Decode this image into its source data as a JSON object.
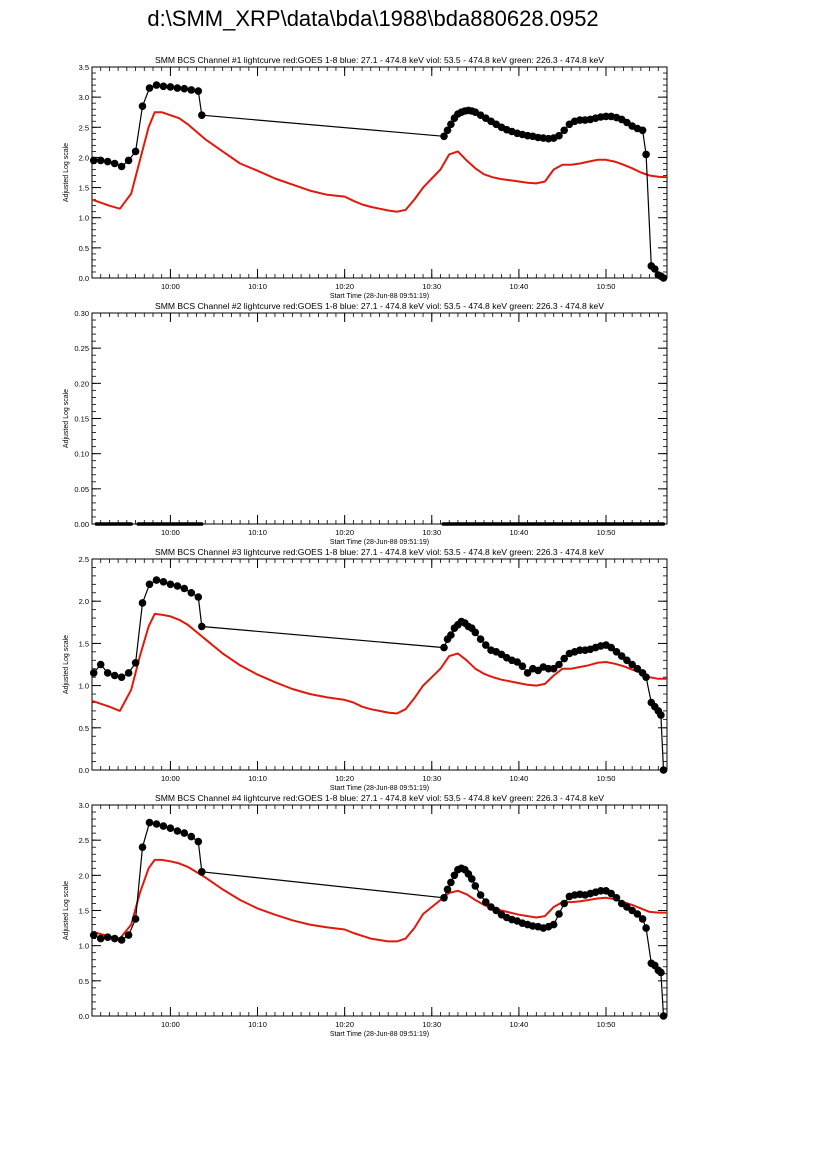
{
  "page": {
    "title": "d:\\SMM_XRP\\data\\bda\\1988\\bda880628.0952"
  },
  "colors": {
    "goes_red": "#e0190c",
    "bcs_black": "#000000",
    "frame": "#000000"
  },
  "chart_data": [
    {
      "type": "line",
      "title": "SMM BCS Channel #1 lightcurve  red:GOES 1-8  blue: 27.1 - 474.8 keV  viol: 53.5 - 474.8 keV  green: 226.3 - 474.8 keV",
      "xlabel": "Start Time (28-Jun-88 09:51:19)",
      "ylabel": "Adjusted Log scale",
      "xlim": [
        0,
        66
      ],
      "ylim": [
        0,
        3.5
      ],
      "xticks": [
        {
          "x": 9,
          "label": "10:00"
        },
        {
          "x": 19,
          "label": "10:10"
        },
        {
          "x": 29,
          "label": "10:20"
        },
        {
          "x": 39,
          "label": "10:30"
        },
        {
          "x": 49,
          "label": "10:40"
        },
        {
          "x": 59,
          "label": "10:50"
        }
      ],
      "yticks": [
        {
          "v": 0,
          "label": "0.0"
        },
        {
          "v": 0.5,
          "label": "0.5"
        },
        {
          "v": 1.0,
          "label": "1.0"
        },
        {
          "v": 1.5,
          "label": "1.5"
        },
        {
          "v": 2.0,
          "label": "2.0"
        },
        {
          "v": 2.5,
          "label": "2.5"
        },
        {
          "v": 3.0,
          "label": "3.0"
        },
        {
          "v": 3.5,
          "label": "3.5"
        }
      ],
      "series": [
        {
          "color": "red",
          "x": [
            0,
            2,
            3.2,
            4.5,
            5.5,
            6.5,
            7.2,
            8,
            9,
            10,
            11,
            13,
            15,
            17,
            19,
            21,
            23,
            25,
            27,
            29,
            30,
            31,
            32,
            33,
            34,
            35,
            36,
            37,
            38,
            39,
            40,
            41,
            42,
            43,
            44,
            45,
            46,
            47,
            48,
            49,
            50,
            51,
            52,
            53,
            54,
            55,
            56,
            57,
            58,
            59,
            60,
            61,
            62,
            63,
            64,
            65,
            66
          ],
          "y": [
            1.3,
            1.2,
            1.15,
            1.4,
            1.95,
            2.5,
            2.75,
            2.75,
            2.7,
            2.65,
            2.55,
            2.3,
            2.1,
            1.9,
            1.78,
            1.65,
            1.55,
            1.45,
            1.38,
            1.35,
            1.28,
            1.22,
            1.18,
            1.15,
            1.12,
            1.1,
            1.13,
            1.3,
            1.5,
            1.65,
            1.8,
            2.05,
            2.1,
            1.95,
            1.82,
            1.72,
            1.67,
            1.64,
            1.62,
            1.6,
            1.58,
            1.57,
            1.6,
            1.8,
            1.88,
            1.88,
            1.9,
            1.93,
            1.96,
            1.96,
            1.93,
            1.88,
            1.82,
            1.75,
            1.7,
            1.68,
            1.67
          ]
        },
        {
          "color": "black",
          "x": [
            0.2,
            1,
            1.8,
            2.6,
            3.4,
            4.2,
            5,
            5.8,
            6.6,
            7.4,
            8.2,
            9,
            9.8,
            10.6,
            11.4,
            12.2,
            12.6,
            40.4,
            40.8,
            41.2,
            41.6,
            42,
            42.4,
            42.8,
            43.2,
            43.6,
            44,
            44.6,
            45.2,
            45.8,
            46.4,
            47,
            47.6,
            48.2,
            48.8,
            49.4,
            50,
            50.6,
            51.2,
            51.8,
            52.4,
            53,
            53.6,
            54.2,
            54.8,
            55.4,
            56,
            56.6,
            57.2,
            57.8,
            58.4,
            59,
            59.6,
            60.2,
            60.8,
            61.4,
            62,
            62.6,
            63.2,
            63.6,
            64.2,
            64.6,
            65,
            65.3,
            65.6
          ],
          "y": [
            1.95,
            1.95,
            1.93,
            1.9,
            1.85,
            1.95,
            2.1,
            2.85,
            3.15,
            3.2,
            3.18,
            3.17,
            3.15,
            3.14,
            3.12,
            3.1,
            2.7,
            2.35,
            2.45,
            2.55,
            2.65,
            2.72,
            2.75,
            2.77,
            2.78,
            2.77,
            2.75,
            2.7,
            2.65,
            2.6,
            2.55,
            2.5,
            2.46,
            2.43,
            2.4,
            2.38,
            2.36,
            2.35,
            2.33,
            2.32,
            2.31,
            2.32,
            2.36,
            2.45,
            2.55,
            2.6,
            2.62,
            2.62,
            2.63,
            2.65,
            2.67,
            2.68,
            2.68,
            2.66,
            2.63,
            2.58,
            2.52,
            2.48,
            2.45,
            2.05,
            0.2,
            0.15,
            0.05,
            0.03,
            0.0
          ]
        }
      ]
    },
    {
      "type": "line",
      "title": "SMM BCS Channel #2 lightcurve  red:GOES 1-8  blue: 27.1 - 474.8 keV  viol: 53.5 - 474.8 keV  green: 226.3 - 474.8 keV",
      "xlabel": "Start Time (28-Jun-88 09:51:19)",
      "ylabel": "Adjusted Log scale",
      "xlim": [
        0,
        66
      ],
      "ylim": [
        0,
        0.3
      ],
      "xticks": [
        {
          "x": 9,
          "label": "10:00"
        },
        {
          "x": 19,
          "label": "10:10"
        },
        {
          "x": 29,
          "label": "10:20"
        },
        {
          "x": 39,
          "label": "10:30"
        },
        {
          "x": 49,
          "label": "10:40"
        },
        {
          "x": 59,
          "label": "10:50"
        }
      ],
      "yticks": [
        {
          "v": 0,
          "label": "0.00"
        },
        {
          "v": 0.05,
          "label": "0.05"
        },
        {
          "v": 0.1,
          "label": "0.10"
        },
        {
          "v": 0.15,
          "label": "0.15"
        },
        {
          "v": 0.2,
          "label": "0.20"
        },
        {
          "v": 0.25,
          "label": "0.25"
        },
        {
          "v": 0.3,
          "label": "0.30"
        }
      ],
      "series": [
        {
          "color": "black",
          "segments": [
            [
              0.5,
              4.5
            ],
            [
              5.3,
              12.6
            ],
            [
              40.3,
              65.6
            ]
          ],
          "y": 0.0
        }
      ]
    },
    {
      "type": "line",
      "title": "SMM BCS Channel #3 lightcurve  red:GOES 1-8  blue: 27.1 - 474.8 keV  viol: 53.5 - 474.8 keV  green: 226.3 - 474.8 keV",
      "xlabel": "Start Time (28-Jun-88 09:51:19)",
      "ylabel": "Adjusted Log scale",
      "xlim": [
        0,
        66
      ],
      "ylim": [
        0,
        2.5
      ],
      "xticks": [
        {
          "x": 9,
          "label": "10:00"
        },
        {
          "x": 19,
          "label": "10:10"
        },
        {
          "x": 29,
          "label": "10:20"
        },
        {
          "x": 39,
          "label": "10:30"
        },
        {
          "x": 49,
          "label": "10:40"
        },
        {
          "x": 59,
          "label": "10:50"
        }
      ],
      "yticks": [
        {
          "v": 0,
          "label": "0.0"
        },
        {
          "v": 0.5,
          "label": "0.5"
        },
        {
          "v": 1.0,
          "label": "1.0"
        },
        {
          "v": 1.5,
          "label": "1.5"
        },
        {
          "v": 2.0,
          "label": "2.0"
        },
        {
          "v": 2.5,
          "label": "2.5"
        }
      ],
      "series": [
        {
          "color": "red",
          "x": [
            0,
            2,
            3.2,
            4.5,
            5.5,
            6.5,
            7.2,
            8,
            9,
            10,
            11,
            13,
            15,
            17,
            19,
            21,
            23,
            25,
            27,
            29,
            30,
            31,
            32,
            33,
            34,
            35,
            36,
            37,
            38,
            39,
            40,
            41,
            42,
            43,
            44,
            45,
            46,
            47,
            48,
            49,
            50,
            51,
            52,
            53,
            54,
            55,
            56,
            57,
            58,
            59,
            60,
            61,
            62,
            63,
            64,
            65,
            66
          ],
          "y": [
            0.82,
            0.75,
            0.7,
            0.95,
            1.35,
            1.7,
            1.85,
            1.84,
            1.82,
            1.78,
            1.72,
            1.55,
            1.38,
            1.24,
            1.13,
            1.04,
            0.96,
            0.9,
            0.86,
            0.83,
            0.8,
            0.75,
            0.72,
            0.7,
            0.68,
            0.67,
            0.72,
            0.85,
            1.0,
            1.1,
            1.2,
            1.35,
            1.38,
            1.3,
            1.2,
            1.14,
            1.1,
            1.07,
            1.05,
            1.03,
            1.01,
            1.0,
            1.02,
            1.12,
            1.2,
            1.2,
            1.22,
            1.24,
            1.27,
            1.28,
            1.26,
            1.23,
            1.19,
            1.15,
            1.1,
            1.08,
            1.08
          ]
        },
        {
          "color": "black",
          "x": [
            0.2,
            1,
            1.8,
            2.6,
            3.4,
            4.2,
            5,
            5.8,
            6.6,
            7.4,
            8.2,
            9,
            9.8,
            10.6,
            11.4,
            12.2,
            12.6,
            40.4,
            40.8,
            41.2,
            41.6,
            42,
            42.4,
            42.8,
            43.2,
            43.6,
            44,
            44.6,
            45.2,
            45.8,
            46.4,
            47,
            47.6,
            48.2,
            48.8,
            49.4,
            50,
            50.6,
            51.2,
            51.8,
            52.4,
            53,
            53.6,
            54.2,
            54.8,
            55.4,
            56,
            56.6,
            57.2,
            57.8,
            58.4,
            59,
            59.6,
            60.2,
            60.8,
            61.4,
            62,
            62.6,
            63.2,
            63.6,
            64.2,
            64.6,
            65,
            65.3,
            65.6
          ],
          "y": [
            1.15,
            1.25,
            1.15,
            1.12,
            1.1,
            1.15,
            1.27,
            1.98,
            2.2,
            2.25,
            2.23,
            2.2,
            2.18,
            2.15,
            2.1,
            2.05,
            1.7,
            1.45,
            1.55,
            1.6,
            1.68,
            1.72,
            1.76,
            1.74,
            1.7,
            1.68,
            1.63,
            1.55,
            1.48,
            1.42,
            1.4,
            1.37,
            1.33,
            1.3,
            1.28,
            1.23,
            1.15,
            1.2,
            1.18,
            1.22,
            1.2,
            1.2,
            1.25,
            1.32,
            1.38,
            1.4,
            1.42,
            1.42,
            1.43,
            1.45,
            1.47,
            1.48,
            1.45,
            1.4,
            1.35,
            1.3,
            1.25,
            1.2,
            1.15,
            1.1,
            0.8,
            0.75,
            0.7,
            0.65,
            0.0
          ]
        }
      ]
    },
    {
      "type": "line",
      "title": "SMM BCS Channel #4 lightcurve  red:GOES 1-8  blue: 27.1 - 474.8 keV  viol: 53.5 - 474.8 keV  green: 226.3 - 474.8 keV",
      "xlabel": "Start Time (28-Jun-88 09:51:19)",
      "ylabel": "Adjusted Log scale",
      "xlim": [
        0,
        66
      ],
      "ylim": [
        0,
        3.0
      ],
      "xticks": [
        {
          "x": 9,
          "label": "10:00"
        },
        {
          "x": 19,
          "label": "10:10"
        },
        {
          "x": 29,
          "label": "10:20"
        },
        {
          "x": 39,
          "label": "10:30"
        },
        {
          "x": 49,
          "label": "10:40"
        },
        {
          "x": 59,
          "label": "10:50"
        }
      ],
      "yticks": [
        {
          "v": 0,
          "label": "0.0"
        },
        {
          "v": 0.5,
          "label": "0.5"
        },
        {
          "v": 1.0,
          "label": "1.0"
        },
        {
          "v": 1.5,
          "label": "1.5"
        },
        {
          "v": 2.0,
          "label": "2.0"
        },
        {
          "v": 2.5,
          "label": "2.5"
        },
        {
          "v": 3.0,
          "label": "3.0"
        }
      ],
      "series": [
        {
          "color": "red",
          "x": [
            0,
            2,
            3.2,
            4.5,
            5.5,
            6.5,
            7.2,
            8,
            9,
            10,
            11,
            13,
            15,
            17,
            19,
            21,
            23,
            25,
            27,
            29,
            30,
            31,
            32,
            33,
            34,
            35,
            36,
            37,
            38,
            39,
            40,
            41,
            42,
            43,
            44,
            45,
            46,
            47,
            48,
            49,
            50,
            51,
            52,
            53,
            54,
            55,
            56,
            57,
            58,
            59,
            60,
            61,
            62,
            63,
            64,
            65,
            66
          ],
          "y": [
            1.2,
            1.13,
            1.1,
            1.3,
            1.75,
            2.1,
            2.22,
            2.22,
            2.2,
            2.17,
            2.12,
            1.97,
            1.8,
            1.65,
            1.53,
            1.44,
            1.36,
            1.3,
            1.26,
            1.23,
            1.18,
            1.14,
            1.1,
            1.08,
            1.06,
            1.06,
            1.1,
            1.25,
            1.45,
            1.55,
            1.65,
            1.75,
            1.78,
            1.73,
            1.65,
            1.58,
            1.53,
            1.5,
            1.47,
            1.44,
            1.42,
            1.4,
            1.42,
            1.55,
            1.62,
            1.62,
            1.63,
            1.65,
            1.67,
            1.68,
            1.66,
            1.62,
            1.58,
            1.53,
            1.48,
            1.47,
            1.47
          ]
        },
        {
          "color": "black",
          "x": [
            0.2,
            1,
            1.8,
            2.6,
            3.4,
            4.2,
            5,
            5.8,
            6.6,
            7.4,
            8.2,
            9,
            9.8,
            10.6,
            11.4,
            12.2,
            12.6,
            40.4,
            40.8,
            41.2,
            41.6,
            42,
            42.4,
            42.8,
            43.2,
            43.6,
            44,
            44.6,
            45.2,
            45.8,
            46.4,
            47,
            47.6,
            48.2,
            48.8,
            49.4,
            50,
            50.6,
            51.2,
            51.8,
            52.4,
            53,
            53.6,
            54.2,
            54.8,
            55.4,
            56,
            56.6,
            57.2,
            57.8,
            58.4,
            59,
            59.6,
            60.2,
            60.8,
            61.4,
            62,
            62.6,
            63.2,
            63.6,
            64.2,
            64.6,
            65,
            65.3,
            65.6
          ],
          "y": [
            1.15,
            1.1,
            1.12,
            1.1,
            1.08,
            1.15,
            1.38,
            2.4,
            2.75,
            2.73,
            2.7,
            2.67,
            2.63,
            2.6,
            2.55,
            2.48,
            2.05,
            1.68,
            1.8,
            1.9,
            2.0,
            2.08,
            2.1,
            2.08,
            2.02,
            1.95,
            1.85,
            1.72,
            1.62,
            1.55,
            1.5,
            1.44,
            1.4,
            1.37,
            1.35,
            1.32,
            1.3,
            1.28,
            1.27,
            1.25,
            1.27,
            1.3,
            1.45,
            1.6,
            1.7,
            1.72,
            1.73,
            1.72,
            1.74,
            1.76,
            1.78,
            1.78,
            1.74,
            1.68,
            1.6,
            1.55,
            1.5,
            1.45,
            1.38,
            1.25,
            0.75,
            0.72,
            0.65,
            0.62,
            0.0
          ]
        }
      ]
    }
  ]
}
